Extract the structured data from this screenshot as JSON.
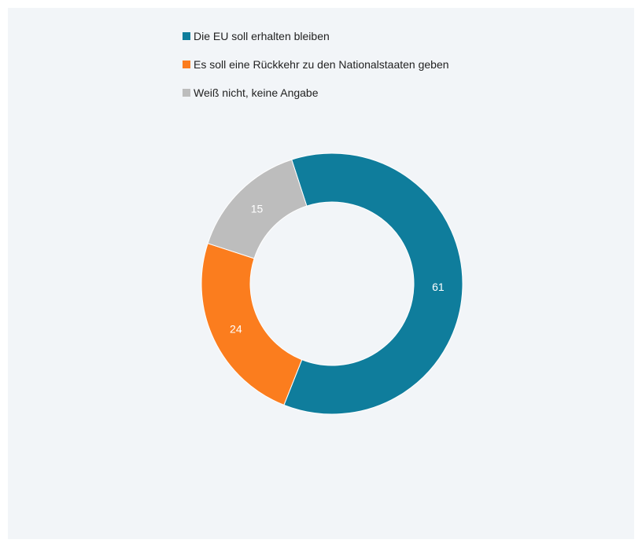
{
  "chart_data": {
    "type": "pie",
    "donut": true,
    "title": "",
    "categories": [
      "Die EU soll erhalten bleiben",
      "Es soll eine Rückkehr zu den Nationalstaaten geben",
      "Weiß nicht, keine Angabe"
    ],
    "values": [
      61,
      24,
      15
    ],
    "data_labels": [
      "61",
      "24",
      "15"
    ],
    "colors": [
      "#0f7d9c",
      "#fb7d1e",
      "#bdbdbd"
    ],
    "legend_position": "top",
    "background_color": "#f2f5f8"
  }
}
